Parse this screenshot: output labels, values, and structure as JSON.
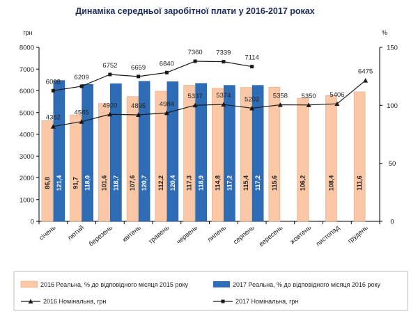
{
  "chart_data": {
    "type": "bar",
    "title": "Динаміка середньої заробітної плати у 2016-2017 роках",
    "y_left_unit": "грн",
    "y_right_unit": "%",
    "y_left_range": [
      0,
      8000
    ],
    "y_left_ticks": [
      "0",
      "1000",
      "2000",
      "3000",
      "4000",
      "5000",
      "6000",
      "7000",
      "8000"
    ],
    "y_right_range": [
      0,
      150
    ],
    "y_right_ticks": [
      "0",
      "50",
      "100",
      "150"
    ],
    "categories": [
      "січень",
      "лютий",
      "березень",
      "квітень",
      "травень",
      "червень",
      "липень",
      "серпень",
      "вересень",
      "жовтень",
      "листопад",
      "грудень"
    ],
    "bar_series": [
      {
        "name": "2016 Реальна, % до відповідного місяця 2015 року",
        "color": "#fac8a6",
        "axis": "right",
        "values": [
          86.8,
          91.7,
          101.6,
          107.6,
          112.2,
          117.3,
          114.8,
          115.4,
          115.6,
          106.2,
          108.4,
          111.6
        ],
        "labels": [
          "86,8",
          "91,7",
          "101,6",
          "107,6",
          "112,2",
          "117,3",
          "114,8",
          "115,4",
          "115,6",
          "106,2",
          "108,4",
          "111,6"
        ]
      },
      {
        "name": "2017 Реальна, % до відповідного місяця 2016 року",
        "color": "#2e6db5",
        "axis": "right",
        "values": [
          121.4,
          118.0,
          118.7,
          120.7,
          120.4,
          118.9,
          117.2,
          117.2,
          null,
          null,
          null,
          null
        ],
        "labels": [
          "121,4",
          "118,0",
          "118,7",
          "120,7",
          "120,4",
          "118,9",
          "117,2",
          "117,2",
          "",
          "",
          "",
          ""
        ]
      }
    ],
    "line_series": [
      {
        "name": "2016 Номінальна, грн",
        "marker": "triangle",
        "color": "#1a1a1a",
        "axis": "left",
        "values": [
          4362,
          4585,
          4920,
          4895,
          4984,
          5337,
          5374,
          5202,
          5358,
          5350,
          5406,
          6475
        ],
        "labels": [
          "4362",
          "4585",
          "4920",
          "4895",
          "4984",
          "5337",
          "5374",
          "5202",
          "5358",
          "5350",
          "5406",
          "6475"
        ]
      },
      {
        "name": "2017 Номінальна, грн",
        "marker": "square",
        "color": "#1a1a1a",
        "axis": "left",
        "values": [
          6008,
          6209,
          6752,
          6659,
          6840,
          7360,
          7339,
          7114,
          null,
          null,
          null,
          null
        ],
        "labels": [
          "6008",
          "6209",
          "6752",
          "6659",
          "6840",
          "7360",
          "7339",
          "7114",
          "",
          "",
          "",
          ""
        ]
      }
    ],
    "legend_placement": "bottom",
    "grid": false
  }
}
